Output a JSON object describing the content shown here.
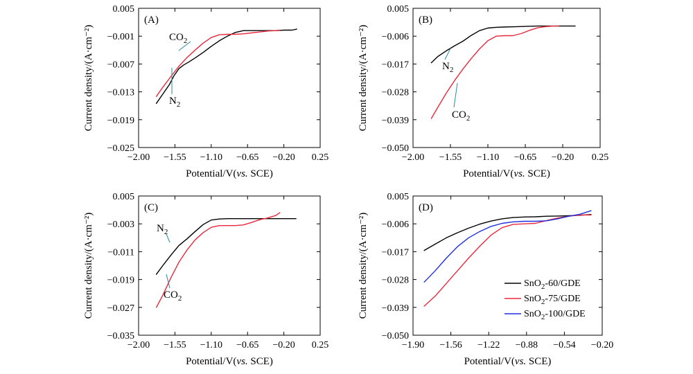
{
  "chart_data": [
    {
      "type": "line",
      "panel_label": "(A)",
      "xlabel_prefix": "Potential/V(",
      "xlabel_italic": "vs.",
      "xlabel_suffix": " SCE)",
      "ylabel": "Current density/(A·cm⁻²)",
      "xlim": [
        -2.0,
        0.25
      ],
      "ylim": [
        -0.025,
        0.005
      ],
      "xticks": [
        -2.0,
        -1.55,
        -1.1,
        -0.65,
        -0.2,
        0.25
      ],
      "xtick_labels": [
        "−2.00",
        "−1.55",
        "−1.10",
        "−0.65",
        "−0.20",
        "0.25"
      ],
      "yticks": [
        0.005,
        -0.001,
        -0.007,
        -0.013,
        -0.019,
        -0.025
      ],
      "ytick_labels": [
        "0.005",
        "−0.001",
        "−0.007",
        "−0.013",
        "−0.019",
        "−0.025"
      ],
      "series": [
        {
          "name": "N₂",
          "color": "#000000",
          "x": [
            -1.78,
            -1.7,
            -1.62,
            -1.56,
            -1.5,
            -1.44,
            -1.38,
            -1.3,
            -1.2,
            -1.1,
            -1.0,
            -0.9,
            -0.8,
            -0.7,
            -0.6,
            -0.5,
            -0.4,
            -0.3,
            -0.2,
            -0.1,
            -0.04
          ],
          "y": [
            -0.0155,
            -0.0135,
            -0.0115,
            -0.0095,
            -0.008,
            -0.0072,
            -0.0066,
            -0.0057,
            -0.0045,
            -0.0032,
            -0.002,
            -0.001,
            -0.0002,
            0.0002,
            0.0002,
            0.0002,
            0.0002,
            0.0002,
            0.0003,
            0.0003,
            0.0005
          ]
        },
        {
          "name": "CO₂",
          "color": "#e8293c",
          "x": [
            -1.78,
            -1.7,
            -1.6,
            -1.5,
            -1.4,
            -1.3,
            -1.2,
            -1.1,
            -1.0,
            -0.9,
            -0.8,
            -0.7,
            -0.6,
            -0.5,
            -0.4,
            -0.3,
            -0.25
          ],
          "y": [
            -0.014,
            -0.012,
            -0.0097,
            -0.0075,
            -0.0056,
            -0.004,
            -0.0025,
            -0.0013,
            -0.0007,
            -0.0006,
            -0.0006,
            -0.0005,
            -0.0003,
            -0.0001,
            0.0001,
            0.0002,
            0.0003
          ]
        }
      ],
      "annotations": [
        {
          "base": "CO",
          "sub": "2"
        },
        {
          "base": "N",
          "sub": "2"
        }
      ]
    },
    {
      "type": "line",
      "panel_label": "(B)",
      "xlabel_prefix": "Potential/V(",
      "xlabel_italic": "vs.",
      "xlabel_suffix": " SCE)",
      "ylabel": "Current density/(A·cm⁻²)",
      "xlim": [
        -2.0,
        0.25
      ],
      "ylim": [
        -0.05,
        0.005
      ],
      "xticks": [
        -2.0,
        -1.55,
        -1.1,
        -0.65,
        -0.2,
        0.25
      ],
      "xtick_labels": [
        "−2.00",
        "−1.55",
        "−1.10",
        "−0.65",
        "−0.20",
        "0.25"
      ],
      "yticks": [
        0.005,
        -0.006,
        -0.017,
        -0.028,
        -0.039,
        -0.05
      ],
      "ytick_labels": [
        "0.005",
        "−0.006",
        "−0.017",
        "−0.028",
        "−0.039",
        "−0.050"
      ],
      "series": [
        {
          "name": "N₂",
          "color": "#000000",
          "x": [
            -1.78,
            -1.7,
            -1.6,
            -1.5,
            -1.4,
            -1.3,
            -1.2,
            -1.1,
            -1.0,
            -0.9,
            -0.8,
            -0.7,
            -0.6,
            -0.5,
            -0.4,
            -0.3,
            -0.2,
            -0.1,
            -0.05
          ],
          "y": [
            -0.0165,
            -0.014,
            -0.0118,
            -0.0098,
            -0.008,
            -0.0057,
            -0.0038,
            -0.0028,
            -0.0025,
            -0.0024,
            -0.0023,
            -0.0022,
            -0.0021,
            -0.002,
            -0.002,
            -0.002,
            -0.002,
            -0.002,
            -0.002
          ]
        },
        {
          "name": "CO₂",
          "color": "#e8293c",
          "x": [
            -1.78,
            -1.7,
            -1.6,
            -1.5,
            -1.4,
            -1.3,
            -1.2,
            -1.1,
            -1.0,
            -0.9,
            -0.8,
            -0.7,
            -0.6,
            -0.5,
            -0.4,
            -0.3,
            -0.25
          ],
          "y": [
            -0.0385,
            -0.034,
            -0.0285,
            -0.0235,
            -0.019,
            -0.0148,
            -0.011,
            -0.0078,
            -0.006,
            -0.0058,
            -0.0058,
            -0.005,
            -0.0037,
            -0.0027,
            -0.0022,
            -0.002,
            -0.002
          ]
        }
      ],
      "annotations": [
        {
          "base": "N",
          "sub": "2"
        },
        {
          "base": "CO",
          "sub": "2"
        }
      ]
    },
    {
      "type": "line",
      "panel_label": "(C)",
      "xlabel_prefix": "Potential/V(",
      "xlabel_italic": "vs.",
      "xlabel_suffix": " SCE)",
      "ylabel": "Current density/(A·cm⁻²)",
      "xlim": [
        -2.0,
        0.25
      ],
      "ylim": [
        -0.035,
        0.005
      ],
      "xticks": [
        -2.0,
        -1.55,
        -1.1,
        -0.65,
        -0.2,
        0.25
      ],
      "xtick_labels": [
        "−2.00",
        "−1.55",
        "−1.10",
        "−0.65",
        "−0.20",
        "0.25"
      ],
      "yticks": [
        0.005,
        -0.003,
        -0.011,
        -0.019,
        -0.027,
        -0.035
      ],
      "ytick_labels": [
        "0.005",
        "−0.003",
        "−0.011",
        "−0.019",
        "−0.027",
        "−0.035"
      ],
      "series": [
        {
          "name": "N₂",
          "color": "#000000",
          "x": [
            -1.78,
            -1.7,
            -1.6,
            -1.5,
            -1.4,
            -1.3,
            -1.2,
            -1.1,
            -1.0,
            -0.9,
            -0.8,
            -0.7,
            -0.6,
            -0.5,
            -0.4,
            -0.3,
            -0.2,
            -0.1,
            -0.05
          ],
          "y": [
            -0.0175,
            -0.015,
            -0.012,
            -0.0092,
            -0.0073,
            -0.0052,
            -0.0032,
            -0.0019,
            -0.0016,
            -0.0015,
            -0.0015,
            -0.0015,
            -0.0015,
            -0.0015,
            -0.0015,
            -0.0015,
            -0.0015,
            -0.0015,
            -0.0015
          ]
        },
        {
          "name": "CO₂",
          "color": "#e8293c",
          "x": [
            -1.78,
            -1.7,
            -1.6,
            -1.5,
            -1.4,
            -1.3,
            -1.2,
            -1.1,
            -1.0,
            -0.9,
            -0.8,
            -0.7,
            -0.6,
            -0.5,
            -0.4,
            -0.3,
            -0.25
          ],
          "y": [
            -0.027,
            -0.0235,
            -0.0185,
            -0.014,
            -0.0105,
            -0.0076,
            -0.0055,
            -0.004,
            -0.0035,
            -0.0035,
            -0.0035,
            -0.0033,
            -0.0026,
            -0.0018,
            -0.0013,
            -0.0006,
            0.0002
          ]
        }
      ],
      "annotations": [
        {
          "base": "N",
          "sub": "2"
        },
        {
          "base": "CO",
          "sub": "2"
        }
      ]
    },
    {
      "type": "line",
      "panel_label": "(D)",
      "xlabel_prefix": "Potential/V(",
      "xlabel_italic": "vs.",
      "xlabel_suffix": " SCE)",
      "ylabel": "Current density/(A·cm⁻²)",
      "xlim": [
        -1.9,
        -0.2
      ],
      "ylim": [
        -0.05,
        0.005
      ],
      "xticks": [
        -1.9,
        -1.56,
        -1.22,
        -0.88,
        -0.54,
        -0.2
      ],
      "xtick_labels": [
        "−1.90",
        "−1.56",
        "−1.22",
        "−0.88",
        "−0.54",
        "−0.20"
      ],
      "yticks": [
        0.005,
        -0.006,
        -0.017,
        -0.028,
        -0.039,
        -0.05
      ],
      "ytick_labels": [
        "0.005",
        "−0.006",
        "−0.017",
        "−0.028",
        "−0.039",
        "−0.050"
      ],
      "series": [
        {
          "name": "SnO₂-60/GDE",
          "color": "#000000",
          "x": [
            -1.8,
            -1.7,
            -1.6,
            -1.5,
            -1.4,
            -1.3,
            -1.2,
            -1.1,
            -1.0,
            -0.9,
            -0.8,
            -0.7,
            -0.6,
            -0.5,
            -0.4,
            -0.3
          ],
          "y": [
            -0.0165,
            -0.014,
            -0.0115,
            -0.0095,
            -0.0077,
            -0.0061,
            -0.0049,
            -0.004,
            -0.0035,
            -0.0033,
            -0.0032,
            -0.003,
            -0.0029,
            -0.0028,
            -0.0026,
            -0.0023
          ]
        },
        {
          "name": "SnO₂-75/GDE",
          "color": "#e8293c",
          "x": [
            -1.8,
            -1.7,
            -1.6,
            -1.5,
            -1.4,
            -1.3,
            -1.2,
            -1.1,
            -1.0,
            -0.9,
            -0.8,
            -0.7,
            -0.6,
            -0.5,
            -0.4,
            -0.3
          ],
          "y": [
            -0.0385,
            -0.0345,
            -0.0295,
            -0.0245,
            -0.0195,
            -0.0148,
            -0.0105,
            -0.0075,
            -0.0062,
            -0.006,
            -0.0058,
            -0.0047,
            -0.0037,
            -0.003,
            -0.0025,
            -0.0025
          ]
        },
        {
          "name": "SnO₂-100/GDE",
          "color": "#1c2fe0",
          "x": [
            -1.8,
            -1.7,
            -1.6,
            -1.5,
            -1.4,
            -1.3,
            -1.2,
            -1.1,
            -1.0,
            -0.9,
            -0.8,
            -0.7,
            -0.6,
            -0.5,
            -0.4,
            -0.3
          ],
          "y": [
            -0.029,
            -0.0245,
            -0.0195,
            -0.015,
            -0.0115,
            -0.009,
            -0.007,
            -0.0058,
            -0.0052,
            -0.005,
            -0.005,
            -0.0048,
            -0.004,
            -0.003,
            -0.0022,
            -0.0008
          ]
        }
      ],
      "legend": {
        "placement": "lower-right",
        "entries": [
          {
            "color": "#000000",
            "base": "SnO",
            "sub": "2",
            "rest": "-60/GDE"
          },
          {
            "color": "#e8293c",
            "base": "SnO",
            "sub": "2",
            "rest": "-75/GDE"
          },
          {
            "color": "#1c2fe0",
            "base": "SnO",
            "sub": "2",
            "rest": "-100/GDE"
          }
        ]
      }
    }
  ]
}
